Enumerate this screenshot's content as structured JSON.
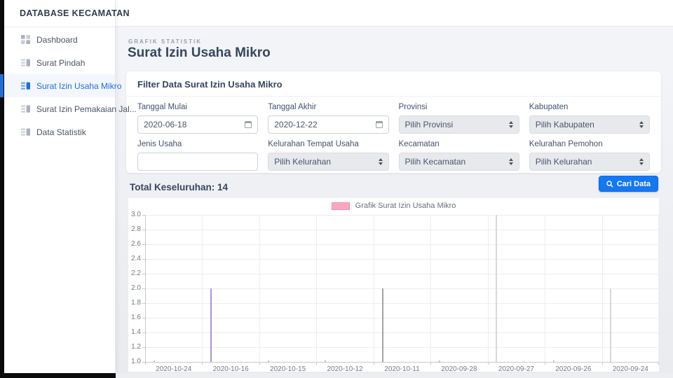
{
  "sidebar": {
    "brand": "DATABASE KECAMATAN",
    "active_color": "#1e6fdc",
    "items": [
      {
        "label": "Dashboard",
        "icon": "dashboard-icon",
        "active": false
      },
      {
        "label": "Surat Pindah",
        "icon": "document-grid-icon",
        "active": false
      },
      {
        "label": "Surat Izin Usaha Mikro",
        "icon": "document-grid-icon",
        "active": true
      },
      {
        "label": "Surat Izin Pemakaian Jal...",
        "icon": "document-grid-icon",
        "active": false
      },
      {
        "label": "Data Statistik",
        "icon": "document-grid-icon",
        "active": false
      }
    ]
  },
  "hero": {
    "eyebrow": "GRAFIK STATISTIK",
    "title": "Surat Izin Usaha Mikro"
  },
  "filter": {
    "title": "Filter Data Surat Izin Usaha Mikro",
    "fields": [
      {
        "label": "Tanggal Mulai",
        "type": "date",
        "value": "2020-06-18"
      },
      {
        "label": "Tanggal Akhir",
        "type": "date",
        "value": "2020-12-22"
      },
      {
        "label": "Provinsi",
        "type": "select",
        "value": "Pilih Provinsi"
      },
      {
        "label": "Kabupaten",
        "type": "select",
        "value": "Pilih Kabupaten"
      },
      {
        "label": "Jenis Usaha",
        "type": "text",
        "value": ""
      },
      {
        "label": "Kelurahan Tempat Usaha",
        "type": "select",
        "value": "Pilih Kelurahan"
      },
      {
        "label": "Kecamatan",
        "type": "select",
        "value": "Pilih Kecamatan"
      },
      {
        "label": "Kelurahan Pemohon",
        "type": "select",
        "value": "Pilih Kelurahan"
      }
    ]
  },
  "summary": {
    "total_label": "Total Keseluruhan:",
    "total_value": "14"
  },
  "actions": {
    "search_label": "Cari Data",
    "search_icon": "search-icon",
    "accent_color": "#1577f2"
  },
  "chart_data": {
    "type": "bar",
    "legend_label": "Grafik Surat Izin Usaha Mikro",
    "legend_swatch_color": "#f8a8bc",
    "legend_position": "top",
    "categories": [
      "2020-10-24",
      "2020-10-16",
      "2020-10-15",
      "2020-10-12",
      "2020-10-11",
      "2020-09-28",
      "2020-09-27",
      "2020-09-26",
      "2020-09-24"
    ],
    "values": [
      1,
      2,
      1,
      1,
      2,
      1,
      3,
      1,
      2
    ],
    "bar_colors": [
      "#f6b7c6",
      "#b59fe0",
      "#f6b7c6",
      "#f6b7c6",
      "#acacae",
      "#f6b7c6",
      "#e4e4e7",
      "#f6b7c6",
      "#e4e4e7"
    ],
    "ylim": [
      1.0,
      3.0
    ],
    "ytick_step": 0.2,
    "grid": true,
    "baseline": 1.0
  }
}
